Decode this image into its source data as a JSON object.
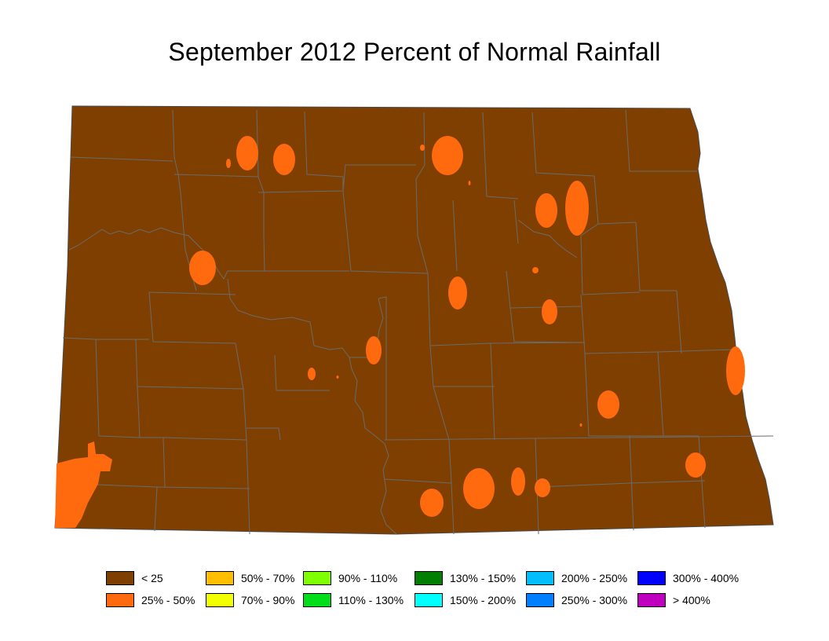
{
  "title": "September 2012 Percent of Normal Rainfall",
  "map": {
    "region": "North Dakota",
    "base_class": "< 25",
    "colors": {
      "base_fill": "#7F3F00",
      "county_lines": "#6b6b6b",
      "patch_fill": "#FF6A0E"
    }
  },
  "legend": [
    {
      "label": "< 25",
      "color": "#7F3F00"
    },
    {
      "label": "25% - 50%",
      "color": "#FF6A0E"
    },
    {
      "label": "50% - 70%",
      "color": "#FFBF00"
    },
    {
      "label": "70% - 90%",
      "color": "#F2FF00"
    },
    {
      "label": "90% - 110%",
      "color": "#7FFF00"
    },
    {
      "label": "110% - 130%",
      "color": "#00DD1A"
    },
    {
      "label": "130% - 150%",
      "color": "#007F00"
    },
    {
      "label": "150% - 200%",
      "color": "#00FFFF"
    },
    {
      "label": "200% - 250%",
      "color": "#00BFFF"
    },
    {
      "label": "250% - 300%",
      "color": "#007FFF"
    },
    {
      "label": "300% - 400%",
      "color": "#0000FF"
    },
    {
      "label": "> 400%",
      "color": "#BF00BF"
    }
  ]
}
